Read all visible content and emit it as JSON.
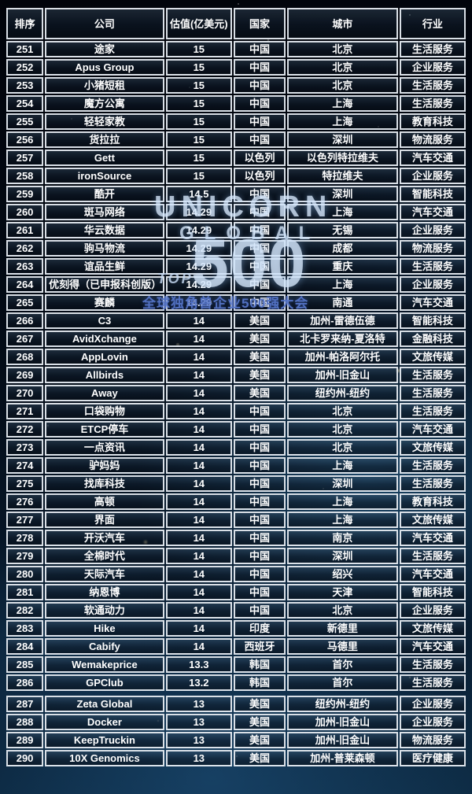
{
  "table": {
    "columns": [
      {
        "key": "rank",
        "label": "排序"
      },
      {
        "key": "company",
        "label": "公司"
      },
      {
        "key": "valuation",
        "label": "估值(亿美元)"
      },
      {
        "key": "country",
        "label": "国家"
      },
      {
        "key": "city",
        "label": "城市"
      },
      {
        "key": "industry",
        "label": "行业"
      }
    ],
    "rows": [
      {
        "rank": "251",
        "company": "途家",
        "valuation": "15",
        "country": "中国",
        "city": "北京",
        "industry": "生活服务"
      },
      {
        "rank": "252",
        "company": "Apus Group",
        "valuation": "15",
        "country": "中国",
        "city": "北京",
        "industry": "企业服务"
      },
      {
        "rank": "253",
        "company": "小猪短租",
        "valuation": "15",
        "country": "中国",
        "city": "北京",
        "industry": "生活服务"
      },
      {
        "rank": "254",
        "company": "魔方公寓",
        "valuation": "15",
        "country": "中国",
        "city": "上海",
        "industry": "生活服务"
      },
      {
        "rank": "255",
        "company": "轻轻家教",
        "valuation": "15",
        "country": "中国",
        "city": "上海",
        "industry": "教育科技"
      },
      {
        "rank": "256",
        "company": "货拉拉",
        "valuation": "15",
        "country": "中国",
        "city": "深圳",
        "industry": "物流服务"
      },
      {
        "rank": "257",
        "company": "Gett",
        "valuation": "15",
        "country": "以色列",
        "city": "以色列特拉维夫",
        "industry": "汽车交通"
      },
      {
        "rank": "258",
        "company": "ironSource",
        "valuation": "15",
        "country": "以色列",
        "city": "特拉维夫",
        "industry": "企业服务"
      },
      {
        "rank": "259",
        "company": "酷开",
        "valuation": "14.5",
        "country": "中国",
        "city": "深圳",
        "industry": "智能科技"
      },
      {
        "rank": "260",
        "company": "斑马网络",
        "valuation": "14.29",
        "country": "中国",
        "city": "上海",
        "industry": "汽车交通"
      },
      {
        "rank": "261",
        "company": "华云数据",
        "valuation": "14.29",
        "country": "中国",
        "city": "无锡",
        "industry": "企业服务"
      },
      {
        "rank": "262",
        "company": "驹马物流",
        "valuation": "14.29",
        "country": "中国",
        "city": "成都",
        "industry": "物流服务"
      },
      {
        "rank": "263",
        "company": "谊品生鲜",
        "valuation": "14.29",
        "country": "中国",
        "city": "重庆",
        "industry": "生活服务"
      },
      {
        "rank": "264",
        "company": "优刻得（已申报科创版）",
        "valuation": "14.29",
        "country": "中国",
        "city": "上海",
        "industry": "企业服务"
      },
      {
        "rank": "265",
        "company": "赛麟",
        "valuation": "14.29",
        "country": "中国",
        "city": "南通",
        "industry": "汽车交通"
      },
      {
        "rank": "266",
        "company": "C3",
        "valuation": "14",
        "country": "美国",
        "city": "加州-雷德伍德",
        "industry": "智能科技"
      },
      {
        "rank": "267",
        "company": "AvidXchange",
        "valuation": "14",
        "country": "美国",
        "city": "北卡罗来纳-夏洛特",
        "industry": "金融科技"
      },
      {
        "rank": "268",
        "company": "AppLovin",
        "valuation": "14",
        "country": "美国",
        "city": "加州-帕洛阿尔托",
        "industry": "文旅传媒"
      },
      {
        "rank": "269",
        "company": "Allbirds",
        "valuation": "14",
        "country": "美国",
        "city": "加州-旧金山",
        "industry": "生活服务"
      },
      {
        "rank": "270",
        "company": "Away",
        "valuation": "14",
        "country": "美国",
        "city": "纽约州-纽约",
        "industry": "生活服务"
      },
      {
        "rank": "271",
        "company": "口袋购物",
        "valuation": "14",
        "country": "中国",
        "city": "北京",
        "industry": "生活服务"
      },
      {
        "rank": "272",
        "company": "ETCP停车",
        "valuation": "14",
        "country": "中国",
        "city": "北京",
        "industry": "汽车交通"
      },
      {
        "rank": "273",
        "company": "一点资讯",
        "valuation": "14",
        "country": "中国",
        "city": "北京",
        "industry": "文旅传媒"
      },
      {
        "rank": "274",
        "company": "驴妈妈",
        "valuation": "14",
        "country": "中国",
        "city": "上海",
        "industry": "生活服务"
      },
      {
        "rank": "275",
        "company": "找库科技",
        "valuation": "14",
        "country": "中国",
        "city": "深圳",
        "industry": "生活服务"
      },
      {
        "rank": "276",
        "company": "高顿",
        "valuation": "14",
        "country": "中国",
        "city": "上海",
        "industry": "教育科技"
      },
      {
        "rank": "277",
        "company": "界面",
        "valuation": "14",
        "country": "中国",
        "city": "上海",
        "industry": "文旅传媒"
      },
      {
        "rank": "278",
        "company": "开沃汽车",
        "valuation": "14",
        "country": "中国",
        "city": "南京",
        "industry": "汽车交通"
      },
      {
        "rank": "279",
        "company": "全棉时代",
        "valuation": "14",
        "country": "中国",
        "city": "深圳",
        "industry": "生活服务"
      },
      {
        "rank": "280",
        "company": "天际汽车",
        "valuation": "14",
        "country": "中国",
        "city": "绍兴",
        "industry": "汽车交通"
      },
      {
        "rank": "281",
        "company": "纳恩博",
        "valuation": "14",
        "country": "中国",
        "city": "天津",
        "industry": "智能科技"
      },
      {
        "rank": "282",
        "company": "软通动力",
        "valuation": "14",
        "country": "中国",
        "city": "北京",
        "industry": "企业服务"
      },
      {
        "rank": "283",
        "company": "Hike",
        "valuation": "14",
        "country": "印度",
        "city": "新德里",
        "industry": "文旅传媒"
      },
      {
        "rank": "284",
        "company": "Cabify",
        "valuation": "14",
        "country": "西班牙",
        "city": "马德里",
        "industry": "汽车交通"
      },
      {
        "rank": "285",
        "company": "Wemakeprice",
        "valuation": "13.3",
        "country": "韩国",
        "city": "首尔",
        "industry": "生活服务"
      },
      {
        "rank": "286",
        "company": "GPClub",
        "valuation": "13.2",
        "country": "韩国",
        "city": "首尔",
        "industry": "生活服务"
      },
      {
        "rank": "287",
        "company": "Zeta Global",
        "valuation": "13",
        "country": "美国",
        "city": "纽约州-纽约",
        "industry": "企业服务",
        "gap_before": true
      },
      {
        "rank": "288",
        "company": "Docker",
        "valuation": "13",
        "country": "美国",
        "city": "加州-旧金山",
        "industry": "企业服务"
      },
      {
        "rank": "289",
        "company": "KeepTruckin",
        "valuation": "13",
        "country": "美国",
        "city": "加州-旧金山",
        "industry": "物流服务"
      },
      {
        "rank": "290",
        "company": "10X Genomics",
        "valuation": "13",
        "country": "美国",
        "city": "加州-普莱森顿",
        "industry": "医疗健康"
      }
    ]
  },
  "watermark": {
    "word1": "UNICORN",
    "word2": "GLOBAL",
    "number": "500",
    "prefix": "TOP",
    "subtitle": "全球独角兽企业500强大会"
  },
  "colors": {
    "border": "#e9eff5",
    "text": "#ffffff",
    "subtitle_blue": "#5474c6",
    "background_top": "#01030a",
    "background_bottom": "#0d2a42"
  }
}
